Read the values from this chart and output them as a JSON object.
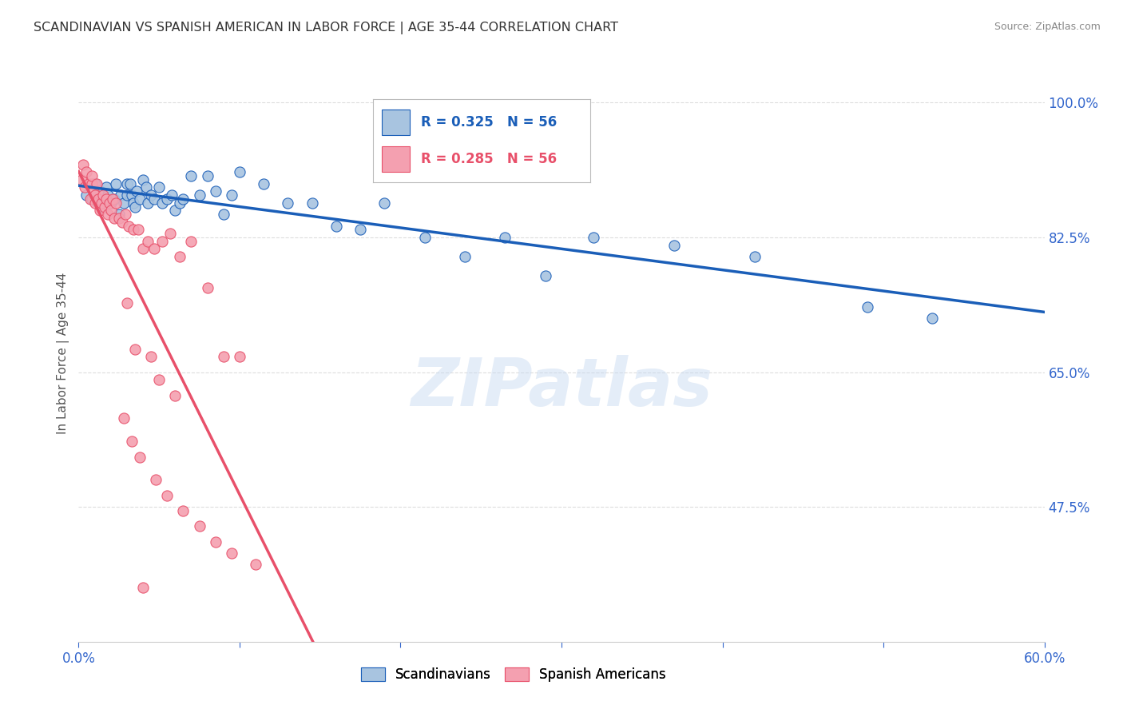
{
  "title": "SCANDINAVIAN VS SPANISH AMERICAN IN LABOR FORCE | AGE 35-44 CORRELATION CHART",
  "source": "Source: ZipAtlas.com",
  "ylabel": "In Labor Force | Age 35-44",
  "x_min": 0.0,
  "x_max": 0.6,
  "y_min": 0.3,
  "y_max": 1.05,
  "x_ticks": [
    0.0,
    0.1,
    0.2,
    0.3,
    0.4,
    0.5,
    0.6
  ],
  "x_tick_labels": [
    "0.0%",
    "",
    "",
    "",
    "",
    "",
    "60.0%"
  ],
  "y_ticks": [
    0.475,
    0.65,
    0.825,
    1.0
  ],
  "y_tick_labels": [
    "47.5%",
    "65.0%",
    "82.5%",
    "100.0%"
  ],
  "watermark": "ZIPatlas",
  "legend_blue_label": "Scandinavians",
  "legend_pink_label": "Spanish Americans",
  "blue_r": 0.325,
  "blue_n": 56,
  "pink_r": 0.285,
  "pink_n": 56,
  "blue_color": "#a8c4e0",
  "pink_color": "#f4a0b0",
  "blue_line_color": "#1a5eb8",
  "pink_line_color": "#e8506a",
  "grid_color": "#dddddd",
  "title_color": "#333333",
  "source_color": "#888888",
  "tick_color": "#3366cc",
  "blue_scatter_x": [
    0.005,
    0.008,
    0.01,
    0.012,
    0.013,
    0.015,
    0.017,
    0.018,
    0.02,
    0.022,
    0.023,
    0.025,
    0.026,
    0.028,
    0.03,
    0.03,
    0.032,
    0.033,
    0.034,
    0.035,
    0.036,
    0.038,
    0.04,
    0.042,
    0.043,
    0.045,
    0.047,
    0.05,
    0.052,
    0.055,
    0.058,
    0.06,
    0.063,
    0.065,
    0.07,
    0.075,
    0.08,
    0.085,
    0.09,
    0.095,
    0.1,
    0.115,
    0.13,
    0.145,
    0.16,
    0.175,
    0.19,
    0.215,
    0.24,
    0.265,
    0.29,
    0.32,
    0.37,
    0.42,
    0.49,
    0.53
  ],
  "blue_scatter_y": [
    0.88,
    0.875,
    0.895,
    0.87,
    0.885,
    0.865,
    0.89,
    0.88,
    0.87,
    0.875,
    0.895,
    0.855,
    0.88,
    0.87,
    0.895,
    0.88,
    0.895,
    0.88,
    0.87,
    0.865,
    0.885,
    0.875,
    0.9,
    0.89,
    0.87,
    0.88,
    0.875,
    0.89,
    0.87,
    0.875,
    0.88,
    0.86,
    0.87,
    0.875,
    0.905,
    0.88,
    0.905,
    0.885,
    0.855,
    0.88,
    0.91,
    0.895,
    0.87,
    0.87,
    0.84,
    0.835,
    0.87,
    0.825,
    0.8,
    0.825,
    0.775,
    0.825,
    0.815,
    0.8,
    0.735,
    0.72
  ],
  "pink_scatter_x": [
    0.002,
    0.003,
    0.004,
    0.005,
    0.006,
    0.007,
    0.008,
    0.008,
    0.009,
    0.01,
    0.01,
    0.011,
    0.012,
    0.013,
    0.014,
    0.015,
    0.016,
    0.017,
    0.018,
    0.019,
    0.02,
    0.021,
    0.022,
    0.023,
    0.025,
    0.027,
    0.029,
    0.031,
    0.034,
    0.037,
    0.04,
    0.043,
    0.047,
    0.052,
    0.057,
    0.063,
    0.07,
    0.08,
    0.09,
    0.1,
    0.03,
    0.035,
    0.045,
    0.05,
    0.06,
    0.028,
    0.033,
    0.038,
    0.048,
    0.055,
    0.065,
    0.075,
    0.085,
    0.095,
    0.11,
    0.04
  ],
  "pink_scatter_y": [
    0.9,
    0.92,
    0.89,
    0.91,
    0.895,
    0.875,
    0.895,
    0.905,
    0.885,
    0.88,
    0.87,
    0.895,
    0.875,
    0.86,
    0.87,
    0.88,
    0.865,
    0.875,
    0.855,
    0.87,
    0.86,
    0.875,
    0.85,
    0.87,
    0.85,
    0.845,
    0.855,
    0.84,
    0.835,
    0.835,
    0.81,
    0.82,
    0.81,
    0.82,
    0.83,
    0.8,
    0.82,
    0.76,
    0.67,
    0.67,
    0.74,
    0.68,
    0.67,
    0.64,
    0.62,
    0.59,
    0.56,
    0.54,
    0.51,
    0.49,
    0.47,
    0.45,
    0.43,
    0.415,
    0.4,
    0.37
  ]
}
